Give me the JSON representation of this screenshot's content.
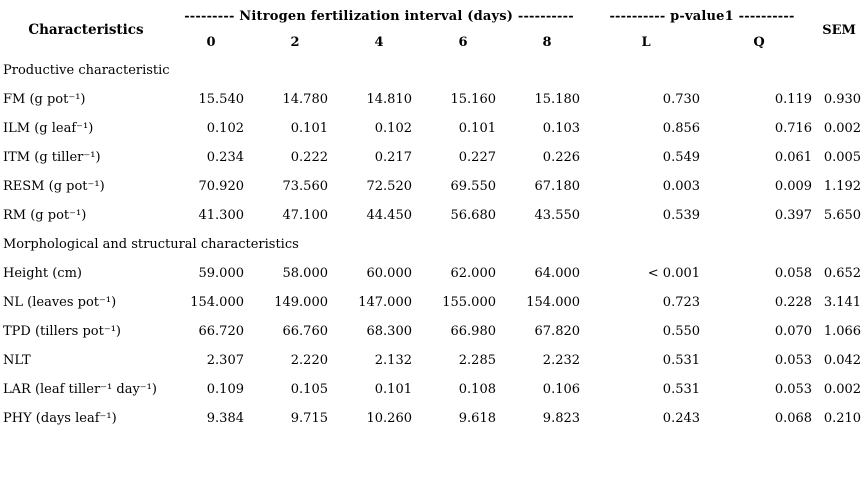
{
  "page": {
    "background_color": "#ffffff",
    "text_color": "#000000"
  },
  "table": {
    "header": {
      "characteristics": "Characteristics",
      "nitrogen_group": "--------- Nitrogen fertilization interval (days) ----------",
      "pvalue_group": "---------- p-value1 ----------",
      "sem": "SEM",
      "interval_cols": [
        "0",
        "2",
        "4",
        "6",
        "8"
      ],
      "pvalue_cols": [
        "L",
        "Q"
      ]
    },
    "sections": [
      {
        "title": "Productive characteristic",
        "rows": [
          {
            "label": "FM (g pot⁻¹)",
            "values": [
              "15.540",
              "14.780",
              "14.810",
              "15.160",
              "15.180",
              "0.730",
              "0.119",
              "0.930"
            ]
          },
          {
            "label": "ILM (g leaf⁻¹)",
            "values": [
              "0.102",
              "0.101",
              "0.102",
              "0.101",
              "0.103",
              "0.856",
              "0.716",
              "0.002"
            ]
          },
          {
            "label": "ITM (g tiller⁻¹)",
            "values": [
              "0.234",
              "0.222",
              "0.217",
              "0.227",
              "0.226",
              "0.549",
              "0.061",
              "0.005"
            ]
          },
          {
            "label": "RESM (g pot⁻¹)",
            "values": [
              "70.920",
              "73.560",
              "72.520",
              "69.550",
              "67.180",
              "0.003",
              "0.009",
              "1.192"
            ]
          },
          {
            "label": "RM (g pot⁻¹)",
            "values": [
              "41.300",
              "47.100",
              "44.450",
              "56.680",
              "43.550",
              "0.539",
              "0.397",
              "5.650"
            ]
          }
        ]
      },
      {
        "title": "Morphological and structural characteristics",
        "rows": [
          {
            "label": "Height (cm)",
            "values": [
              "59.000",
              "58.000",
              "60.000",
              "62.000",
              "64.000",
              "< 0.001",
              "0.058",
              "0.652"
            ]
          },
          {
            "label": "NL (leaves pot⁻¹)",
            "values": [
              "154.000",
              "149.000",
              "147.000",
              "155.000",
              "154.000",
              "0.723",
              "0.228",
              "3.141"
            ]
          },
          {
            "label": "TPD (tillers pot⁻¹)",
            "values": [
              "66.720",
              "66.760",
              "68.300",
              "66.980",
              "67.820",
              "0.550",
              "0.070",
              "1.066"
            ]
          },
          {
            "label": "NLT",
            "values": [
              "2.307",
              "2.220",
              "2.132",
              "2.285",
              "2.232",
              "0.531",
              "0.053",
              "0.042"
            ]
          },
          {
            "label": "LAR (leaf tiller⁻¹ day⁻¹)",
            "values": [
              "0.109",
              "0.105",
              "0.101",
              "0.108",
              "0.106",
              "0.531",
              "0.053",
              "0.002"
            ]
          },
          {
            "label": "PHY (days leaf⁻¹)",
            "values": [
              "9.384",
              "9.715",
              "10.260",
              "9.618",
              "9.823",
              "0.243",
              "0.068",
              "0.210"
            ]
          }
        ]
      }
    ]
  }
}
